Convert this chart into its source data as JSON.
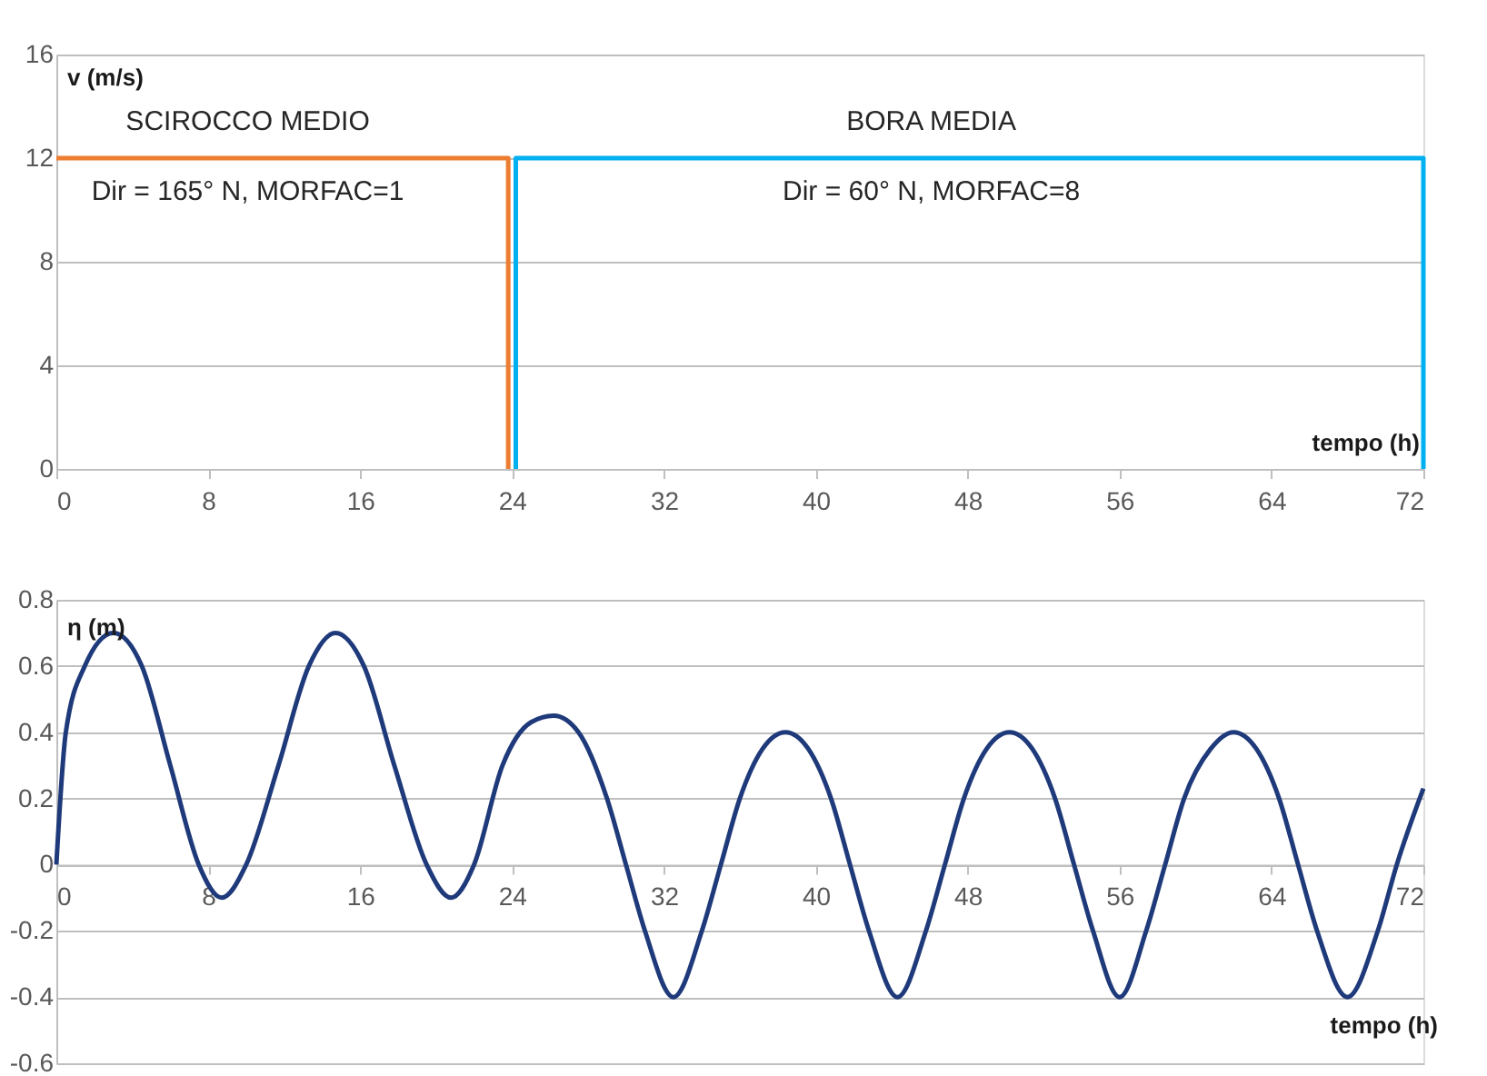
{
  "chart_data": [
    {
      "type": "line",
      "xlabel": "tempo (h)",
      "ylabel": "v (m/s)",
      "xlim": [
        0,
        72
      ],
      "xticks": [
        0,
        8,
        16,
        24,
        32,
        40,
        48,
        56,
        64,
        72
      ],
      "ylim": [
        0,
        16
      ],
      "yticks": [
        0,
        4,
        8,
        12,
        16
      ],
      "grid": "y",
      "legend": false,
      "marker": "none",
      "line_style": "solid",
      "series": [
        {
          "x": [
            0,
            23.8,
            23.8
          ],
          "values": [
            12,
            12,
            0
          ],
          "color": "#ed7d31"
        },
        {
          "x": [
            24.2,
            24.2,
            72,
            72
          ],
          "values": [
            0,
            12,
            12,
            0
          ],
          "color": "#00b0f0"
        }
      ],
      "annotations": [
        "SCIROCCO MEDIO",
        "Dir = 165° N, MORFAC=1",
        "BORA MEDIA",
        "Dir = 60° N, MORFAC=8"
      ]
    },
    {
      "type": "line",
      "xlabel": "tempo (h)",
      "ylabel": "η (m)",
      "xlim": [
        0,
        72
      ],
      "xticks": [
        0,
        8,
        16,
        24,
        32,
        40,
        48,
        56,
        64,
        72
      ],
      "ylim": [
        -0.6,
        0.8
      ],
      "yticks": [
        -0.6,
        -0.4,
        -0.2,
        0,
        0.2,
        0.4,
        0.6,
        0.8
      ],
      "grid": "y",
      "legend": false,
      "marker": "none",
      "line_style": "solid",
      "series": [
        {
          "color": "#1f3a7a",
          "x": [
            0,
            0.5,
            1.5,
            3,
            4.5,
            6,
            7.5,
            8.7,
            10,
            11.7,
            13.3,
            14.7,
            16.2,
            17.8,
            19.5,
            20.8,
            22,
            23.5,
            25,
            26.2,
            27.5,
            29,
            30,
            31,
            32.5,
            34,
            35,
            36,
            37.2,
            38.4,
            39.6,
            40.8,
            41.8,
            42.8,
            44.3,
            45.8,
            46.8,
            47.8,
            49,
            50.2,
            51.4,
            52.6,
            53.6,
            54.6,
            56,
            57.4,
            58.4,
            59.4,
            60.8,
            62,
            63.2,
            64.4,
            65.4,
            66.4,
            68,
            69.6,
            70.6,
            72
          ],
          "values": [
            0,
            0.4,
            0.6,
            0.7,
            0.6,
            0.3,
            0,
            -0.1,
            0,
            0.3,
            0.6,
            0.7,
            0.6,
            0.3,
            0,
            -0.1,
            0,
            0.3,
            0.43,
            0.45,
            0.4,
            0.2,
            0,
            -0.2,
            -0.4,
            -0.2,
            0,
            0.2,
            0.35,
            0.4,
            0.35,
            0.2,
            0,
            -0.2,
            -0.4,
            -0.2,
            0,
            0.2,
            0.35,
            0.4,
            0.35,
            0.2,
            0,
            -0.2,
            -0.4,
            -0.2,
            0,
            0.2,
            0.35,
            0.4,
            0.35,
            0.2,
            0,
            -0.2,
            -0.4,
            -0.2,
            0,
            0.23
          ]
        }
      ]
    }
  ]
}
